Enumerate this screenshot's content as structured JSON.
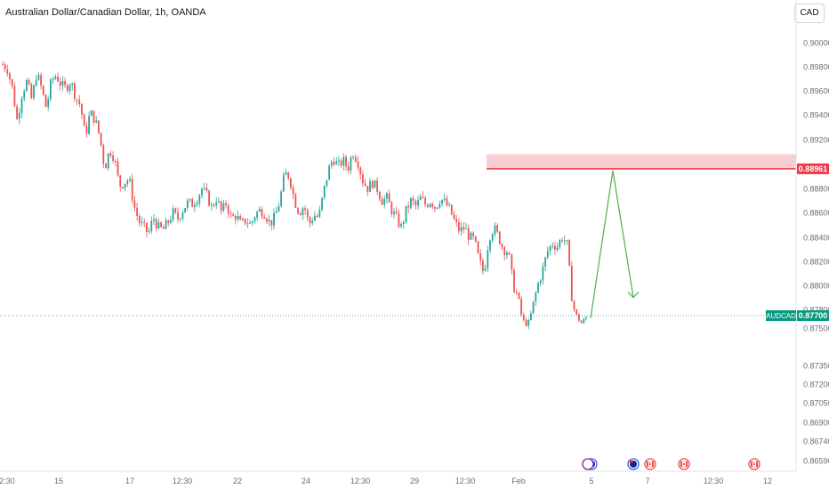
{
  "header": {
    "symbol_name": "Australian Dollar/Canadian Dollar",
    "interval": "1h",
    "broker": "OANDA",
    "separator": ", "
  },
  "currency_button": "CAD",
  "colors": {
    "up": "#26a69a",
    "down": "#ef5350",
    "zone_fill": "#f7c5c9",
    "zone_line": "#f23645",
    "arrow": "#4caf50",
    "current_line": "#089981",
    "axis_text": "#6a6d78"
  },
  "chart_data": {
    "type": "candlestick",
    "symbol": "AUDCAD",
    "y_tick_labels": [
      "0.90000",
      "0.89800",
      "0.89600",
      "0.89400",
      "0.89200",
      "0.88800",
      "0.88600",
      "0.88400",
      "0.88200",
      "0.88000",
      "0.87800",
      "0.87500",
      "0.87350",
      "0.87200",
      "0.87050",
      "0.86900",
      "0.86740",
      "0.86590"
    ],
    "y_tick_values": [
      0.9,
      0.898,
      0.896,
      0.894,
      0.892,
      0.888,
      0.886,
      0.884,
      0.882,
      0.88,
      0.878,
      0.875,
      0.8735,
      0.872,
      0.8705,
      0.869,
      0.8674,
      0.8659
    ],
    "x_tick_labels": [
      "2:30",
      "15",
      "17",
      "12:30",
      "22",
      "24",
      "12:30",
      "29",
      "12:30",
      "Feb",
      "5",
      "7",
      "12:30",
      "12"
    ],
    "current_price_label": "AUDCAD",
    "current_price": "0.87700",
    "zone_price": "0.88961",
    "price_path": [
      0.8982,
      0.8978,
      0.8962,
      0.8935,
      0.8958,
      0.8968,
      0.8952,
      0.8975,
      0.8962,
      0.8945,
      0.8968,
      0.8973,
      0.8965,
      0.8962,
      0.8968,
      0.8955,
      0.8948,
      0.8922,
      0.8942,
      0.8936,
      0.8922,
      0.8896,
      0.8912,
      0.8905,
      0.8882,
      0.8885,
      0.8888,
      0.8866,
      0.8853,
      0.8848,
      0.8843,
      0.8856,
      0.8848,
      0.8846,
      0.8852,
      0.886,
      0.8855,
      0.8862,
      0.8868,
      0.8867,
      0.8872,
      0.888,
      0.8874,
      0.8864,
      0.8872,
      0.886,
      0.8868,
      0.8855,
      0.8858,
      0.885,
      0.8854,
      0.885,
      0.8859,
      0.8862,
      0.8859,
      0.8851,
      0.8856,
      0.887,
      0.8892,
      0.889,
      0.887,
      0.886,
      0.8866,
      0.885,
      0.8858,
      0.8856,
      0.8877,
      0.8895,
      0.8905,
      0.8898,
      0.8903,
      0.8896,
      0.891,
      0.8903,
      0.8887,
      0.888,
      0.8885,
      0.888,
      0.887,
      0.8872,
      0.8862,
      0.8855,
      0.8848,
      0.8862,
      0.887,
      0.8865,
      0.8872,
      0.8866,
      0.887,
      0.8864,
      0.8872,
      0.8868,
      0.8862,
      0.8852,
      0.8845,
      0.8848,
      0.884,
      0.8838,
      0.882,
      0.881,
      0.884,
      0.8848,
      0.884,
      0.883,
      0.8828,
      0.88,
      0.879,
      0.8762,
      0.8755,
      0.8782,
      0.88,
      0.8812,
      0.8828,
      0.8835,
      0.8832,
      0.884,
      0.8836,
      0.8792,
      0.877,
      0.8758,
      0.8766
    ],
    "zone": {
      "from": 0.88961,
      "to": 0.8908
    },
    "projection": [
      [
        0.8766,
        0.88961
      ],
      [
        0.879
      ]
    ]
  },
  "events": [
    "flag-au-cross",
    "flag-au",
    "flag-ca",
    "flag-ca",
    "flag-ca"
  ]
}
